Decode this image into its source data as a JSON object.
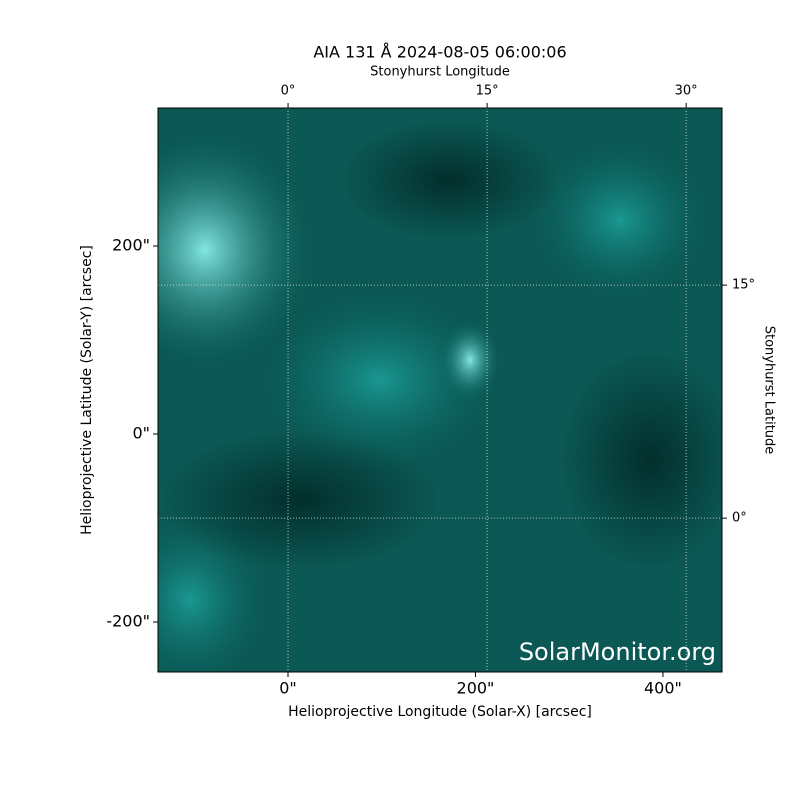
{
  "chart_data": {
    "type": "image",
    "title": "AIA 131 Å 2024-08-05 06:00:06",
    "xlabel": "Helioprojective Longitude (Solar-X) [arcsec]",
    "ylabel": "Helioprojective Latitude (Solar-Y) [arcsec]",
    "x2label": "Stonyhurst Longitude",
    "y2label": "Stonyhurst Latitude",
    "watermark": "SolarMonitor.org",
    "xlim": [
      -138.7,
      463
    ],
    "ylim": [
      -253.2,
      346.8
    ],
    "xticks": [
      {
        "value": 0,
        "label": "0\""
      },
      {
        "value": 200,
        "label": "200\""
      },
      {
        "value": 400,
        "label": "400\""
      }
    ],
    "yticks": [
      {
        "value": -200,
        "label": "-200\""
      },
      {
        "value": 0,
        "label": "0\""
      },
      {
        "value": 200,
        "label": "200\""
      }
    ],
    "x2lim": [
      -9.8,
      32.7
    ],
    "y2lim": [
      -9.9,
      26.4
    ],
    "x2ticks": [
      {
        "value": 0,
        "label": "0°"
      },
      {
        "value": 15,
        "label": "15°"
      },
      {
        "value": 30,
        "label": "30°"
      }
    ],
    "y2ticks": [
      {
        "value": 0,
        "label": "0°"
      },
      {
        "value": 15,
        "label": "15°"
      }
    ],
    "grid": true
  }
}
